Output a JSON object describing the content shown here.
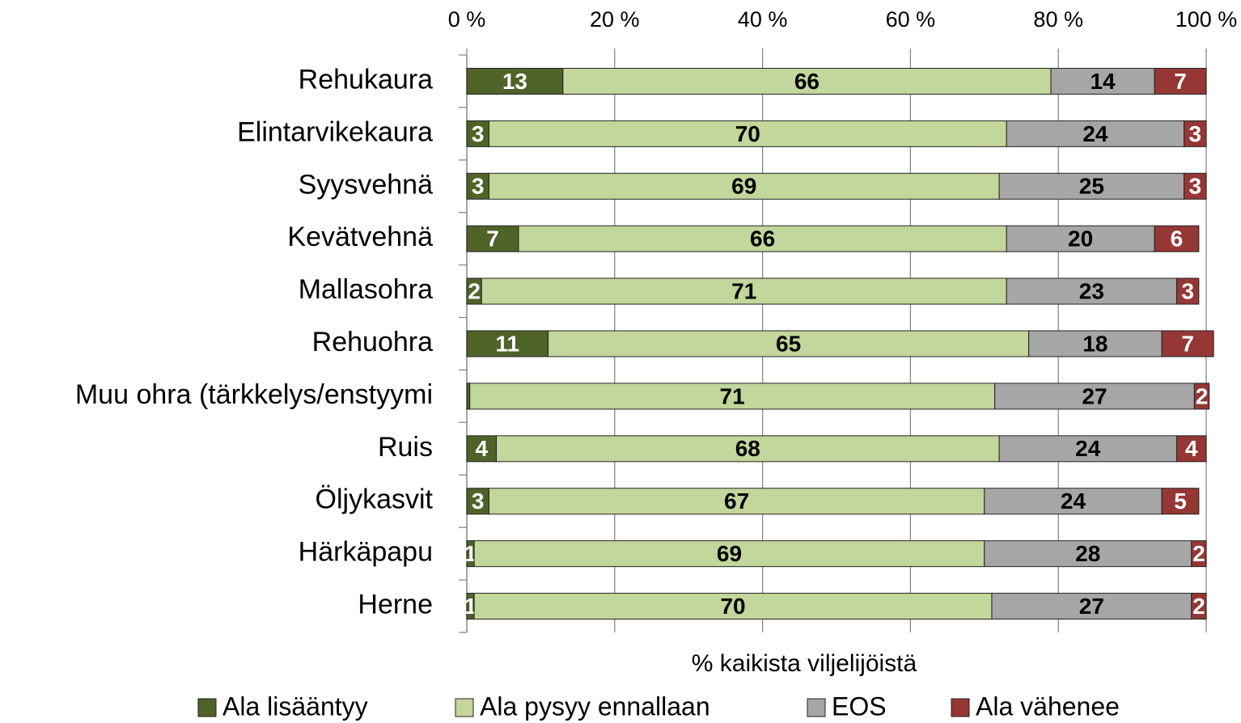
{
  "chart_data": {
    "type": "bar",
    "orientation": "horizontal",
    "stacked": true,
    "xlabel": "% kaikista viljelijöistä",
    "categories": [
      "Rehukaura",
      "Elintarvikekaura",
      "Syysvehnä",
      "Kevätvehnä",
      "Mallasohra",
      "Rehuohra",
      "Muu ohra (tärkkelys/enstyymi",
      "Ruis",
      "Öljykasvit",
      "Härkäpapu",
      "Herne"
    ],
    "series": [
      {
        "name": "Ala lisääntyy",
        "color": "#4f6228",
        "label_color": "#ffffff",
        "values": [
          13,
          3,
          3,
          7,
          2,
          11,
          0.4,
          4,
          3,
          1,
          1
        ]
      },
      {
        "name": "Ala pysyy ennallaan",
        "color": "#c3d69b",
        "label_color": "#000000",
        "values": [
          66,
          70,
          69,
          66,
          71,
          65,
          71,
          68,
          67,
          69,
          70
        ]
      },
      {
        "name": "EOS",
        "color": "#a6a6a6",
        "label_color": "#000000",
        "values": [
          14,
          24,
          25,
          20,
          23,
          18,
          27,
          24,
          24,
          28,
          27
        ]
      },
      {
        "name": "Ala vähenee",
        "color": "#953735",
        "label_color": "#ffffff",
        "values": [
          7,
          3,
          3,
          6,
          3,
          7,
          2,
          4,
          5,
          2,
          2
        ]
      }
    ],
    "xlim": [
      0,
      100
    ],
    "xticks": [
      {
        "value": 0,
        "label": "0 %"
      },
      {
        "value": 20,
        "label": "20 %"
      },
      {
        "value": 40,
        "label": "40 %"
      },
      {
        "value": 60,
        "label": "60 %"
      },
      {
        "value": 80,
        "label": "80 %"
      },
      {
        "value": 100,
        "label": "100 %"
      }
    ],
    "grid": true,
    "legend": "bottom"
  }
}
